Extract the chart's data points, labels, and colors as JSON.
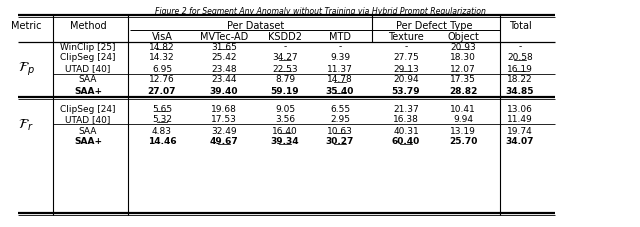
{
  "title": "Figure 2 for Segment Any Anomaly without Training via Hybrid Prompt Regularization",
  "col_headers_row1": [
    "Metric",
    "Method",
    "Per Dataset",
    "",
    "",
    "",
    "Per Defect Type",
    "",
    "Total"
  ],
  "col_headers_row2": [
    "",
    "",
    "VisA",
    "MVTec-AD",
    "KSDD2",
    "MTD",
    "Texture",
    "Object",
    ""
  ],
  "fp_compare_rows": [
    {
      "method": "WinClip [25]",
      "vals": [
        "14.82",
        "31.65",
        "-",
        "-",
        "-",
        "20.93",
        "-"
      ],
      "ul": [
        true,
        true,
        false,
        false,
        false,
        true,
        false
      ]
    },
    {
      "method": "ClipSeg [24]",
      "vals": [
        "14.32",
        "25.42",
        "34.27",
        "9.39",
        "27.75",
        "18.30",
        "20.58"
      ],
      "ul": [
        false,
        false,
        true,
        false,
        false,
        false,
        true
      ]
    },
    {
      "method": "UTAD [40]",
      "vals": [
        "6.95",
        "23.48",
        "22.53",
        "11.37",
        "29.13",
        "12.07",
        "16.19"
      ],
      "ul": [
        false,
        false,
        true,
        false,
        true,
        false,
        true
      ]
    }
  ],
  "fp_saa_rows": [
    {
      "method": "SAA",
      "vals": [
        "12.76",
        "23.44",
        "8.79",
        "14.78",
        "20.94",
        "17.35",
        "18.22"
      ],
      "ul": [
        false,
        false,
        false,
        true,
        false,
        false,
        false
      ],
      "bold": false
    },
    {
      "method": "SAA+",
      "vals": [
        "27.07",
        "39.40",
        "59.19",
        "35.40",
        "53.79",
        "28.82",
        "34.85"
      ],
      "ul": [
        false,
        false,
        false,
        true,
        false,
        false,
        false
      ],
      "bold": true
    }
  ],
  "fr_compare_rows": [
    {
      "method": "ClipSeg [24]",
      "vals": [
        "5.65",
        "19.68",
        "9.05",
        "6.55",
        "21.37",
        "10.41",
        "13.06"
      ],
      "ul": [
        true,
        false,
        false,
        false,
        false,
        false,
        false
      ]
    },
    {
      "method": "UTAD [40]",
      "vals": [
        "5.32",
        "17.53",
        "3.56",
        "2.95",
        "16.38",
        "9.94",
        "11.49"
      ],
      "ul": [
        true,
        false,
        false,
        false,
        false,
        false,
        false
      ]
    }
  ],
  "fr_saa_rows": [
    {
      "method": "SAA",
      "vals": [
        "4.83",
        "32.49",
        "16.40",
        "10.63",
        "40.31",
        "13.19",
        "19.74"
      ],
      "ul": [
        false,
        false,
        true,
        true,
        false,
        false,
        false
      ],
      "bold": false
    },
    {
      "method": "SAA+",
      "vals": [
        "14.46",
        "49.67",
        "39.34",
        "30.27",
        "60.40",
        "25.70",
        "34.07"
      ],
      "ul": [
        false,
        true,
        true,
        true,
        true,
        false,
        false
      ],
      "bold": true
    }
  ]
}
